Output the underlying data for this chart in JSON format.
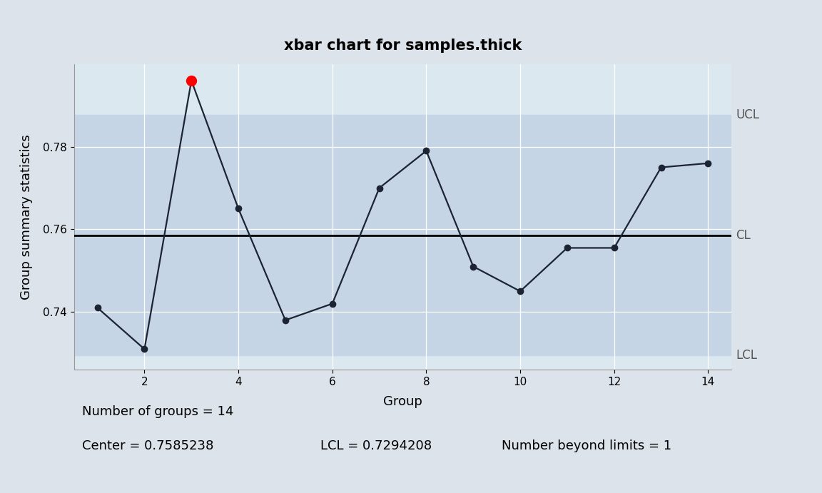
{
  "title": "xbar chart for samples.thick",
  "xlabel": "Group",
  "ylabel": "Group summary statistics",
  "groups": [
    1,
    2,
    3,
    4,
    5,
    6,
    7,
    8,
    9,
    10,
    11,
    12,
    13,
    14
  ],
  "values": [
    0.741,
    0.731,
    0.796,
    0.765,
    0.738,
    0.742,
    0.77,
    0.779,
    0.751,
    0.745,
    0.7555,
    0.7555,
    0.775,
    0.776
  ],
  "CL": 0.7585238,
  "LCL": 0.7294208,
  "UCL": 0.7876268,
  "n_groups": 14,
  "n_beyond": 1,
  "outer_bg": "#dce3ea",
  "plot_bg": "#dce8f0",
  "band_color": "#c5d5e5",
  "line_color": "#1c2333",
  "cl_color": "black",
  "beyond_color": "red",
  "normal_marker_color": "#1c2333",
  "yticks": [
    0.74,
    0.76,
    0.78
  ],
  "xticks": [
    2,
    4,
    6,
    8,
    10,
    12,
    14
  ],
  "ylim_low": 0.726,
  "ylim_high": 0.8,
  "footer_line1": "Number of groups = 14",
  "footer_line2_col1": "Center = 0.7585238",
  "footer_line2_col2": "LCL = 0.7294208",
  "footer_line2_col3": "Number beyond limits = 1",
  "title_fontsize": 15,
  "axis_label_fontsize": 13,
  "tick_fontsize": 11,
  "footer_fontsize": 13,
  "side_label_fontsize": 12
}
